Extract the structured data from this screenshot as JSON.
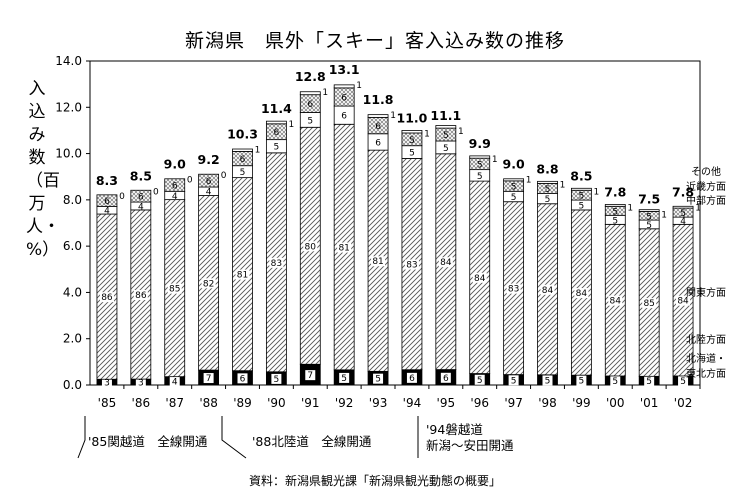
{
  "chart_data": {
    "type": "bar",
    "title": "新潟県　県外「スキー」客入込み数の推移",
    "ylabel": "入込み数（百万人・%）",
    "ylim": [
      0,
      14
    ],
    "yticks": [
      "0.0",
      "2.0",
      "4.0",
      "6.0",
      "8.0",
      "10.0",
      "12.0",
      "14.0"
    ],
    "categories": [
      "'85",
      "'86",
      "'87",
      "'88",
      "'89",
      "'90",
      "'91",
      "'92",
      "'93",
      "'94",
      "'95",
      "'96",
      "'97",
      "'98",
      "'99",
      "'00",
      "'01",
      "'02"
    ],
    "totals": [
      8.3,
      8.5,
      9.0,
      9.2,
      10.3,
      11.4,
      12.8,
      13.1,
      11.8,
      11.0,
      11.1,
      9.9,
      9.0,
      8.8,
      8.5,
      7.8,
      7.5,
      7.8
    ],
    "total_labels": [
      "8.3",
      "8.5",
      "9.0",
      "9.2",
      "10.3",
      "11.4",
      "12.8",
      "13.1",
      "11.8",
      "11.0",
      "11.1",
      "9.9",
      "9.0",
      "8.8",
      "8.5",
      "7.8",
      "7.5",
      "7.8"
    ],
    "series": [
      {
        "name": "北海道・東北方面",
        "values": [
          0,
          0,
          0,
          0,
          0,
          0,
          0,
          0,
          0,
          0,
          0,
          0,
          0,
          0,
          0,
          0,
          0,
          0
        ]
      },
      {
        "name": "北陸方面",
        "values": [
          3,
          3,
          4,
          7,
          6,
          5,
          7,
          5,
          5,
          6,
          6,
          5,
          5,
          5,
          5,
          5,
          5,
          5
        ]
      },
      {
        "name": "関東方面",
        "values": [
          86,
          86,
          85,
          82,
          81,
          83,
          80,
          81,
          81,
          83,
          84,
          84,
          83,
          84,
          84,
          84,
          85,
          84
        ]
      },
      {
        "name": "中部方面",
        "values": [
          4,
          4,
          4,
          4,
          5,
          5,
          5,
          6,
          6,
          5,
          5,
          5,
          5,
          5,
          5,
          5,
          5,
          4
        ]
      },
      {
        "name": "近畿方面",
        "values": [
          6,
          6,
          6,
          6,
          6,
          6,
          6,
          6,
          6,
          5,
          5,
          5,
          5,
          5,
          5,
          5,
          5,
          5
        ]
      },
      {
        "name": "その他",
        "values": [
          0,
          0,
          0,
          0,
          1,
          1,
          1,
          1,
          1,
          1,
          1,
          1,
          1,
          1,
          1,
          1,
          1,
          1
        ]
      }
    ],
    "legend": [
      "その他",
      "近畿方面",
      "中部方面",
      "関東方面",
      "北陸方面",
      "北海道・",
      "東北方面"
    ],
    "grid": false,
    "annotations": [
      "'85関越道　全線開通",
      "'88北陸道　全線開通",
      "'94磐越道",
      "新潟～安田開通"
    ],
    "source": "資料：新潟県観光課「新潟県観光動態の概要」"
  }
}
